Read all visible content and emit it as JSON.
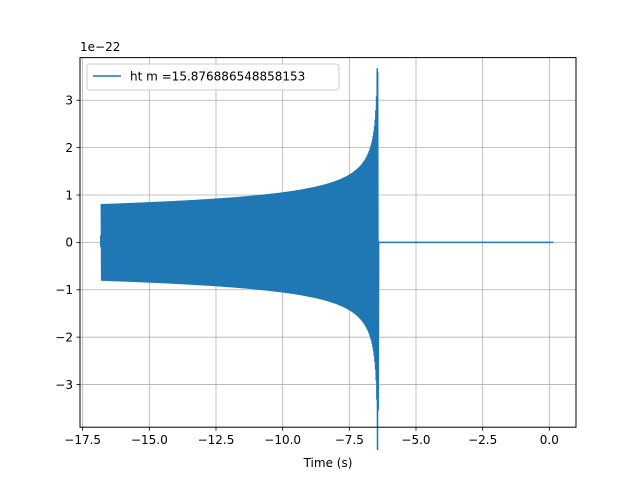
{
  "chart_data": {
    "type": "line",
    "xlabel": "Time (s)",
    "ylabel": "",
    "y_scale_label": "1e−22",
    "xlim": [
      -17.6,
      1.0
    ],
    "ylim": [
      -3.9,
      3.9
    ],
    "x_ticks": [
      -17.5,
      -15.0,
      -12.5,
      -10.0,
      -7.5,
      -5.0,
      -2.5,
      0.0
    ],
    "x_tick_labels": [
      "−17.5",
      "−15.0",
      "−12.5",
      "−10.0",
      "−7.5",
      "−5.0",
      "−2.5",
      "0.0"
    ],
    "y_ticks": [
      -3,
      -2,
      -1,
      0,
      1,
      2,
      3
    ],
    "y_tick_labels": [
      "−3",
      "−2",
      "−1",
      "0",
      "1",
      "2",
      "3"
    ],
    "grid": true,
    "legend_position": "upper-left",
    "series": [
      {
        "name": "ht m =15.876886548858153",
        "color": "#1f77b4",
        "signal_start": -16.8,
        "merger_time": -6.43,
        "signal_end": 0.15,
        "start_amplitude": 0.81,
        "peak_amplitude": 3.6,
        "min_peak": -3.55
      }
    ]
  }
}
